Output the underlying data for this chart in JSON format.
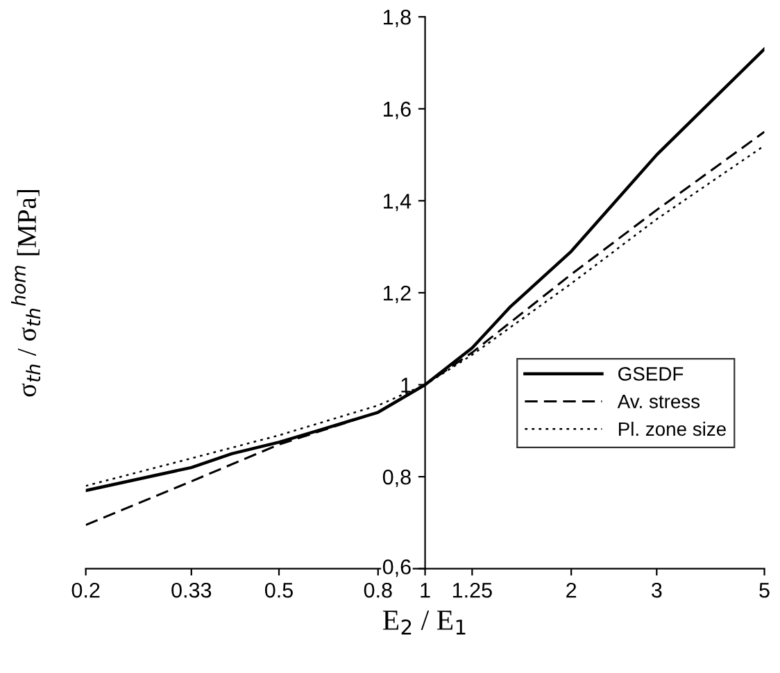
{
  "chart_data": {
    "type": "line",
    "xlabel": "E$_{2}$ / E$_{1}$",
    "ylabel": "σ$_{th}$ / σ$_{th}$$^{hom}$ [MPa]",
    "log": "x",
    "xlim": [
      0.2,
      5
    ],
    "ylim": [
      0.6,
      1.8
    ],
    "xticks": [
      0.2,
      0.33,
      0.5,
      0.8,
      1,
      1.25,
      2,
      3,
      5
    ],
    "yticks": [
      {
        "value": 0.6,
        "label": "0,6"
      },
      {
        "value": 0.8,
        "label": "0,8"
      },
      1,
      {
        "value": 1.2,
        "label": "1,2"
      },
      {
        "value": 1.4,
        "label": "1,4"
      },
      {
        "value": 1.6,
        "label": "1,6"
      },
      {
        "value": 1.8,
        "label": "1,8"
      }
    ],
    "grid": false,
    "legend": "right",
    "marker": "none",
    "series": [
      {
        "name": "GSEDF",
        "color": "#000000",
        "line_style": "solid",
        "x": [
          0.2,
          0.33,
          0.4,
          0.5,
          0.6,
          0.8,
          1,
          1.25,
          1.5,
          2,
          3,
          5
        ],
        "values": [
          0.77,
          0.82,
          0.85,
          0.875,
          0.9,
          0.94,
          1.0,
          1.08,
          1.17,
          1.29,
          1.5,
          1.73
        ]
      },
      {
        "name": "Av. stress",
        "color": "#000000",
        "line_style": "dashed",
        "x": [
          0.2,
          0.33,
          0.5,
          0.8,
          1,
          1.25,
          2,
          3,
          5
        ],
        "values": [
          0.695,
          0.79,
          0.87,
          0.94,
          1.0,
          1.07,
          1.24,
          1.38,
          1.55
        ]
      },
      {
        "name": "Pl. zone size",
        "color": "#000000",
        "line_style": "dotted",
        "x": [
          0.2,
          0.33,
          0.5,
          0.8,
          1,
          1.25,
          2,
          3,
          5
        ],
        "values": [
          0.78,
          0.84,
          0.89,
          0.955,
          1.0,
          1.065,
          1.22,
          1.36,
          1.52
        ]
      }
    ]
  }
}
